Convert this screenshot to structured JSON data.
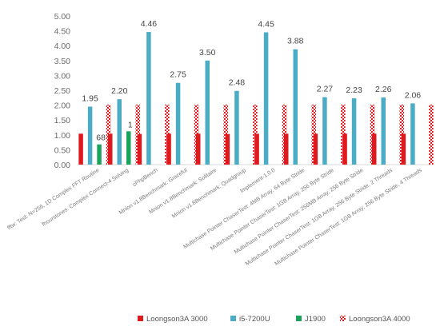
{
  "chart_data": {
    "type": "bar",
    "ylim": [
      0,
      5
    ],
    "yticks": [
      "0.00",
      "0.50",
      "1.00",
      "1.50",
      "2.00",
      "2.50",
      "3.00",
      "3.50",
      "4.00",
      "4.50",
      "5.00"
    ],
    "grid": false,
    "legend_position": "bottom",
    "categories": [
      "fftw: Test: N=256, 1D Complex FFT Routine",
      "fhourstones: Complex Connect-4 Solving",
      "cPhpBench",
      "Mnion v1.8Benchmark: Graceful",
      "Mnion v1.8Benchmark: Solitaire",
      "Mnion v1.8Benchmark: Quadgroup",
      "Implement-1.0.0",
      "Multichase Pointer ChaserTest: 4MB Array, 64 Byte Stride",
      "Multichase Pointer ChaserTest: 1GB Array, 256 Byte Stride",
      "Multichase Pointer ChaserTest: 256MB Array, 256 Byte Stride",
      "Multichase Pointer ChaserTest: 1GB Array, 256 Byte Stride, 2 Threads",
      "Multichase Pointer ChaserTest: 1GB Array, 256 Byte Stride, 4 Threads"
    ],
    "series": [
      {
        "name": "Loongson3A 3000",
        "color": "#e0191e",
        "pattern": "solid",
        "values": [
          1.04,
          1.04,
          1.03,
          1.04,
          1.04,
          1.03,
          1.04,
          1.04,
          1.04,
          1.04,
          1.04,
          1.04
        ]
      },
      {
        "name": "i5-7200U",
        "color": "#4bacc6",
        "pattern": "solid",
        "values": [
          1.95,
          2.2,
          4.46,
          2.75,
          3.5,
          2.48,
          4.45,
          3.88,
          2.27,
          2.23,
          2.26,
          2.06
        ]
      },
      {
        "name": "J1900",
        "color": "#1aa35a",
        "pattern": "solid",
        "values": [
          0.68,
          1.12,
          null,
          null,
          null,
          null,
          null,
          null,
          null,
          null,
          null,
          null
        ]
      },
      {
        "name": "Loongson3A 4000",
        "color": "#e0191e",
        "pattern": "checker",
        "values": [
          2.02,
          2.02,
          2.02,
          2.02,
          2.02,
          2.02,
          2.02,
          2.02,
          2.02,
          2.02,
          2.02,
          2.02
        ]
      }
    ],
    "data_labels": {
      "series": "i5-7200U",
      "values": [
        "1.95",
        "2.20",
        "4.46",
        "2.75",
        "3.50",
        "2.48",
        "4.45",
        "3.88",
        "2.27",
        "2.23",
        "2.26",
        "2.06"
      ]
    },
    "partial_labels": [
      "68",
      "1"
    ]
  }
}
